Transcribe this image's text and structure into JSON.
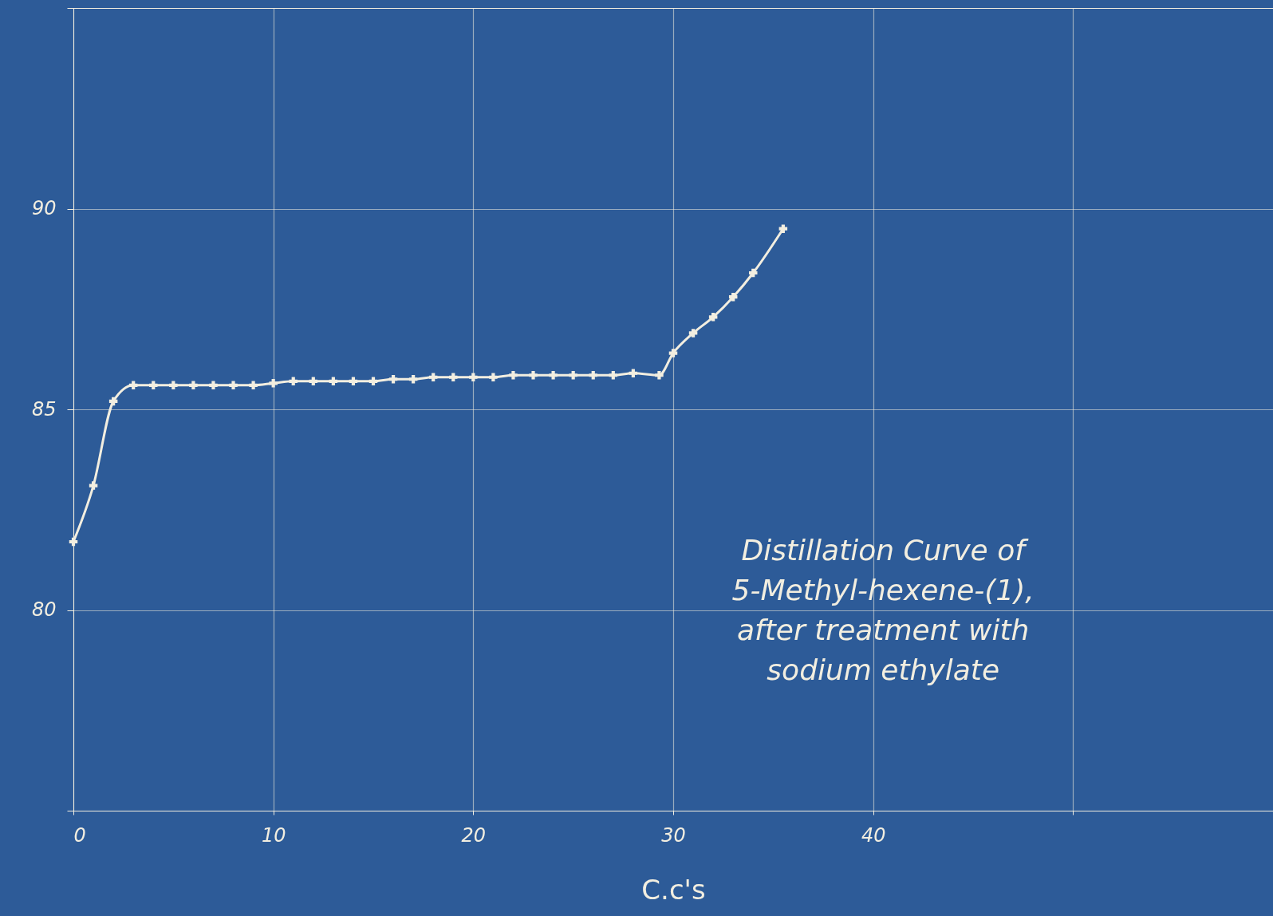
{
  "chart_data": {
    "type": "line",
    "xlabel": "C.c's",
    "annotations": [
      "Distillation Curve of\n5-Methyl-hexene-(1),\nafter treatment with\nsodium ethylate"
    ],
    "x": [
      0,
      1,
      2,
      3,
      4,
      5,
      6,
      7,
      8,
      9,
      10,
      11,
      12,
      13,
      14,
      15,
      16,
      17,
      18,
      19,
      20,
      21,
      22,
      23,
      24,
      25,
      26,
      27,
      28,
      29.3,
      30,
      31,
      32,
      33,
      34,
      35.5
    ],
    "series": [
      {
        "color": "#f2eee0",
        "values": [
          81.7,
          83.1,
          85.2,
          85.6,
          85.6,
          85.6,
          85.6,
          85.6,
          85.6,
          85.6,
          85.65,
          85.7,
          85.7,
          85.7,
          85.7,
          85.7,
          85.75,
          85.75,
          85.8,
          85.8,
          85.8,
          85.8,
          85.85,
          85.85,
          85.85,
          85.85,
          85.85,
          85.85,
          85.9,
          85.85,
          86.4,
          86.9,
          87.3,
          87.8,
          88.4,
          89.5
        ]
      }
    ],
    "xlim": [
      0,
      60
    ],
    "xticks": [
      0,
      10,
      20,
      30,
      40,
      {
        "value": 50,
        "label": null
      }
    ],
    "ylim": [
      75,
      95
    ],
    "yticks": [
      {
        "value": 75,
        "label": null
      },
      80,
      85,
      90,
      {
        "value": 95,
        "label": null
      }
    ],
    "grid": true,
    "marker": "cross",
    "line_style": "solid"
  }
}
